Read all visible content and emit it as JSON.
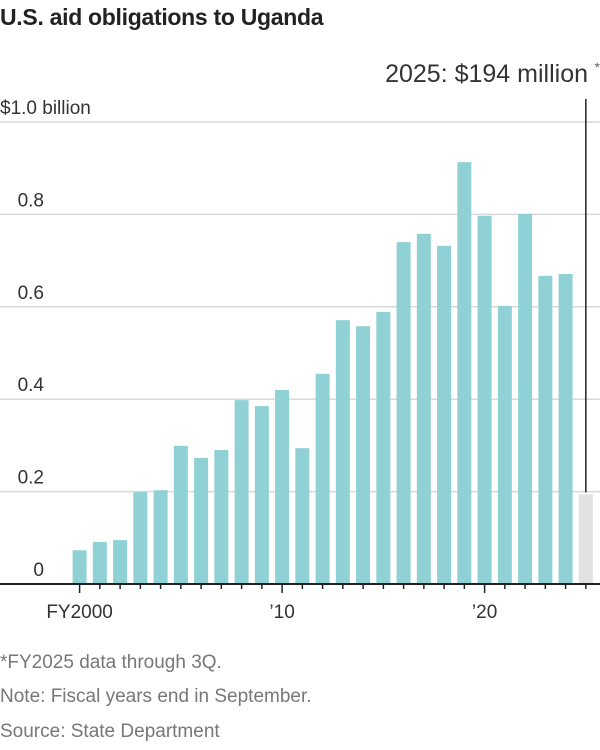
{
  "chart_data": {
    "type": "bar",
    "title": "U.S. aid obligations to Uganda",
    "xlabel": "",
    "ylabel": "",
    "ylim": [
      0,
      1.0
    ],
    "yticks": [
      {
        "value": 0,
        "label": "0"
      },
      {
        "value": 0.2,
        "label": "0.2"
      },
      {
        "value": 0.4,
        "label": "0.4"
      },
      {
        "value": 0.6,
        "label": "0.6"
      },
      {
        "value": 0.8,
        "label": "0.8"
      },
      {
        "value": 1.0,
        "label": "$1.0 billion"
      }
    ],
    "xticks": [
      {
        "year": 2000,
        "label": "FY2000"
      },
      {
        "year": 2010,
        "label": "’10"
      },
      {
        "year": 2020,
        "label": "’20"
      }
    ],
    "grid": true,
    "categories": [
      2000,
      2001,
      2002,
      2003,
      2004,
      2005,
      2006,
      2007,
      2008,
      2009,
      2010,
      2011,
      2012,
      2013,
      2014,
      2015,
      2016,
      2017,
      2018,
      2019,
      2020,
      2021,
      2022,
      2023,
      2024,
      2025
    ],
    "values": [
      0.073,
      0.091,
      0.095,
      0.199,
      0.203,
      0.299,
      0.273,
      0.29,
      0.398,
      0.385,
      0.42,
      0.294,
      0.455,
      0.571,
      0.558,
      0.589,
      0.74,
      0.758,
      0.732,
      0.913,
      0.797,
      0.602,
      0.801,
      0.667,
      0.671,
      0.194
    ],
    "highlight": {
      "year": 2025,
      "label": "2025: $194 million",
      "mark": "*"
    },
    "colors": {
      "bar": "#8fd1d4",
      "highlight_bar": "#e2e2e4",
      "grid": "#d8d8d8",
      "axis": "#222222",
      "text": "#333333"
    }
  },
  "footnotes": {
    "asterisk": "*FY2025 data through 3Q.",
    "note": "Note: Fiscal years end in September.",
    "source": "Source: State Department"
  }
}
